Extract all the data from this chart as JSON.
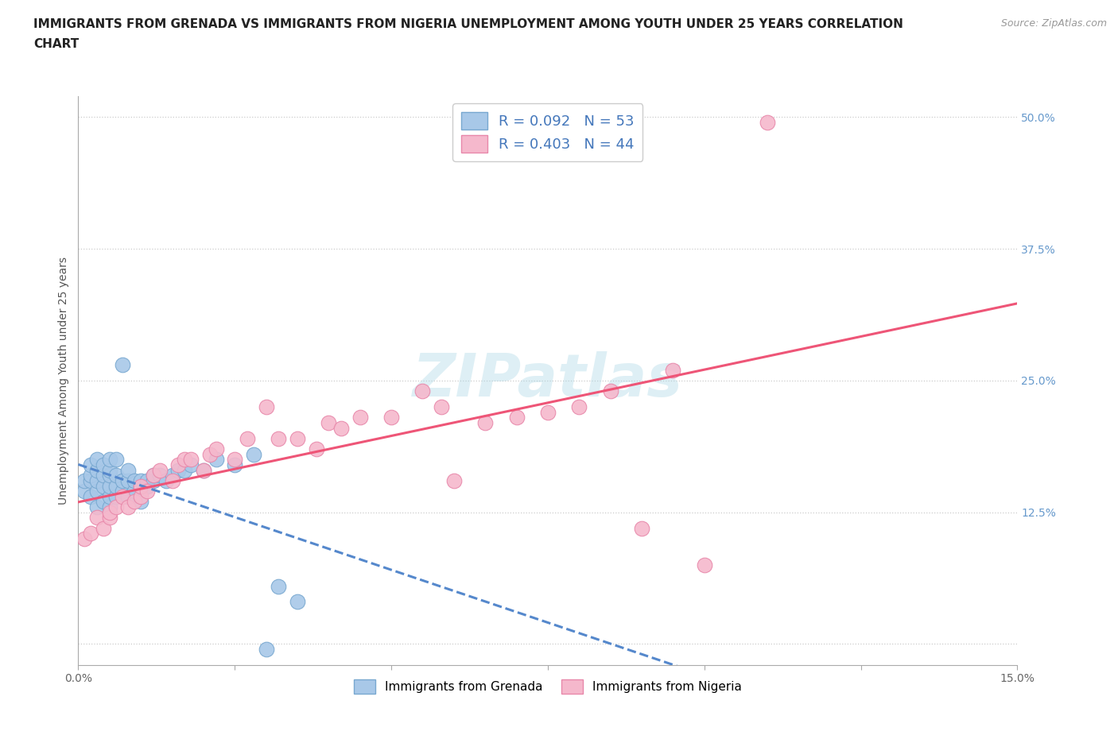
{
  "title": "IMMIGRANTS FROM GRENADA VS IMMIGRANTS FROM NIGERIA UNEMPLOYMENT AMONG YOUTH UNDER 25 YEARS CORRELATION\nCHART",
  "source": "Source: ZipAtlas.com",
  "ylabel": "Unemployment Among Youth under 25 years",
  "xlim": [
    0.0,
    0.15
  ],
  "ylim": [
    -0.02,
    0.52
  ],
  "ylim_display": [
    0.0,
    0.5
  ],
  "xticks": [
    0.0,
    0.025,
    0.05,
    0.075,
    0.1,
    0.125,
    0.15
  ],
  "xticklabels": [
    "0.0%",
    "",
    "",
    "",
    "",
    "",
    "15.0%"
  ],
  "yticks_right": [
    0.0,
    0.125,
    0.25,
    0.375,
    0.5
  ],
  "yticklabels_right": [
    "",
    "12.5%",
    "25.0%",
    "37.5%",
    "50.0%"
  ],
  "background_color": "#ffffff",
  "grid_color": "#cccccc",
  "grenada_color": "#a8c8e8",
  "nigeria_color": "#f5b8cc",
  "grenada_edge": "#78a8d0",
  "nigeria_edge": "#e888aa",
  "grenada_line_color": "#5588cc",
  "nigeria_line_color": "#ee5577",
  "legend_r_grenada": "R = 0.092   N = 53",
  "legend_r_nigeria": "R = 0.403   N = 44",
  "legend_label_grenada": "Immigrants from Grenada",
  "legend_label_nigeria": "Immigrants from Nigeria",
  "title_fontsize": 11,
  "axis_label_fontsize": 10,
  "tick_fontsize": 10,
  "watermark": "ZIPatlas",
  "grenada_x": [
    0.001,
    0.001,
    0.002,
    0.002,
    0.002,
    0.002,
    0.003,
    0.003,
    0.003,
    0.003,
    0.003,
    0.004,
    0.004,
    0.004,
    0.004,
    0.005,
    0.005,
    0.005,
    0.005,
    0.005,
    0.005,
    0.006,
    0.006,
    0.006,
    0.006,
    0.007,
    0.007,
    0.007,
    0.008,
    0.008,
    0.008,
    0.009,
    0.009,
    0.01,
    0.01,
    0.01,
    0.011,
    0.011,
    0.012,
    0.012,
    0.013,
    0.014,
    0.015,
    0.016,
    0.017,
    0.018,
    0.02,
    0.022,
    0.025,
    0.028,
    0.03,
    0.032,
    0.035
  ],
  "grenada_y": [
    0.145,
    0.155,
    0.14,
    0.155,
    0.16,
    0.17,
    0.13,
    0.145,
    0.155,
    0.165,
    0.175,
    0.135,
    0.15,
    0.16,
    0.17,
    0.13,
    0.14,
    0.15,
    0.16,
    0.165,
    0.175,
    0.14,
    0.15,
    0.16,
    0.175,
    0.145,
    0.155,
    0.265,
    0.14,
    0.155,
    0.165,
    0.145,
    0.155,
    0.135,
    0.15,
    0.155,
    0.15,
    0.155,
    0.155,
    0.16,
    0.16,
    0.155,
    0.16,
    0.165,
    0.165,
    0.17,
    0.165,
    0.175,
    0.17,
    0.18,
    -0.005,
    0.055,
    0.04
  ],
  "nigeria_x": [
    0.001,
    0.002,
    0.003,
    0.004,
    0.005,
    0.005,
    0.006,
    0.007,
    0.008,
    0.009,
    0.01,
    0.01,
    0.011,
    0.012,
    0.013,
    0.015,
    0.016,
    0.017,
    0.018,
    0.02,
    0.021,
    0.022,
    0.025,
    0.027,
    0.03,
    0.032,
    0.035,
    0.038,
    0.04,
    0.042,
    0.045,
    0.05,
    0.055,
    0.058,
    0.06,
    0.065,
    0.07,
    0.075,
    0.08,
    0.085,
    0.09,
    0.095,
    0.1,
    0.11
  ],
  "nigeria_y": [
    0.1,
    0.105,
    0.12,
    0.11,
    0.12,
    0.125,
    0.13,
    0.14,
    0.13,
    0.135,
    0.14,
    0.15,
    0.145,
    0.16,
    0.165,
    0.155,
    0.17,
    0.175,
    0.175,
    0.165,
    0.18,
    0.185,
    0.175,
    0.195,
    0.225,
    0.195,
    0.195,
    0.185,
    0.21,
    0.205,
    0.215,
    0.215,
    0.24,
    0.225,
    0.155,
    0.21,
    0.215,
    0.22,
    0.225,
    0.24,
    0.11,
    0.26,
    0.075,
    0.495
  ]
}
